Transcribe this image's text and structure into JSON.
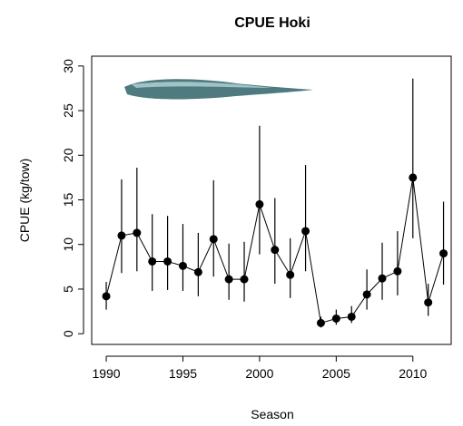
{
  "chart_data": {
    "type": "errorbar-line",
    "title": "CPUE Hoki",
    "x_label": "Season",
    "y_label": "CPUE (kg/tow)",
    "x": [
      1990,
      1991,
      1992,
      1993,
      1994,
      1995,
      1996,
      1997,
      1998,
      1999,
      2000,
      2001,
      2002,
      2003,
      2004,
      2005,
      2006,
      2007,
      2008,
      2009,
      2010,
      2011,
      2012
    ],
    "values": [
      4.2,
      11.0,
      11.3,
      8.1,
      8.1,
      7.6,
      6.9,
      10.6,
      6.1,
      6.1,
      14.5,
      9.4,
      6.6,
      11.5,
      1.2,
      1.7,
      1.9,
      4.4,
      6.2,
      7.0,
      17.5,
      3.5,
      9.0
    ],
    "lower": [
      2.7,
      6.8,
      7.0,
      4.8,
      4.9,
      4.8,
      4.2,
      6.4,
      3.8,
      3.6,
      8.9,
      5.6,
      4.0,
      7.0,
      0.7,
      1.0,
      1.2,
      2.7,
      3.8,
      4.3,
      10.7,
      2.0,
      5.5
    ],
    "upper": [
      5.8,
      17.3,
      18.6,
      13.4,
      13.2,
      12.3,
      11.3,
      17.2,
      10.1,
      10.3,
      23.3,
      15.2,
      10.7,
      18.9,
      1.9,
      2.7,
      3.1,
      7.2,
      10.2,
      11.5,
      28.6,
      5.6,
      14.8
    ],
    "color": "#000000",
    "xlim": [
      1989.05,
      2012.5
    ],
    "xticks": [
      1990,
      1995,
      2000,
      2005,
      2010
    ],
    "ylim": [
      -1.2,
      31.1
    ],
    "yticks": [
      0,
      5,
      10,
      15,
      20,
      25,
      30
    ]
  }
}
